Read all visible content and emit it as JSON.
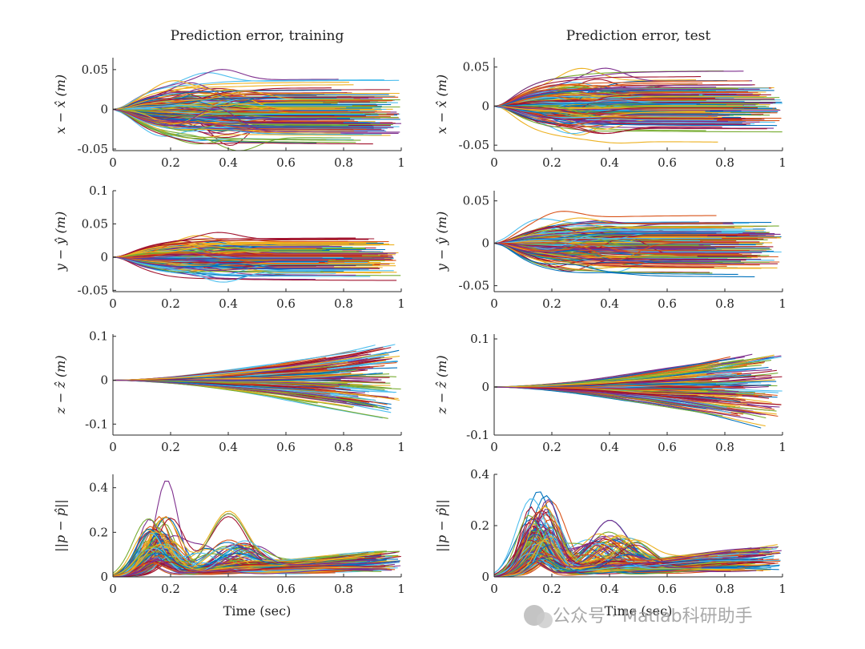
{
  "watermark": "公众号 · Matlab科研助手",
  "palette": [
    "#0072BD",
    "#D95319",
    "#EDB120",
    "#7E2F8E",
    "#77AC30",
    "#4DBEEE",
    "#A2142F"
  ],
  "chart_data": [
    {
      "id": "px-train",
      "type": "line",
      "title": "Prediction error, training",
      "ylabel": "x − x̂ (m)",
      "xlabel": "",
      "xlim": [
        0,
        1
      ],
      "ylim": [
        -0.052,
        0.065
      ],
      "xticks": [
        "0",
        "0.2",
        "0.4",
        "0.6",
        "0.8",
        "1"
      ],
      "yticks": [
        {
          "v": 0.05,
          "label": "0.05"
        },
        {
          "v": 0,
          "label": "0"
        },
        {
          "v": -0.05,
          "label": "-0.05"
        }
      ],
      "kind": "bell",
      "amp": 0.035,
      "plateau": 0.6,
      "n_series": 200,
      "note": "~200 trajectories, error starts at 0 at t=0, ends between 0.7 and 1.0 s"
    },
    {
      "id": "px-test",
      "type": "line",
      "title": "Prediction error, test",
      "ylabel": "x − x̂ (m)",
      "xlabel": "",
      "xlim": [
        0,
        1
      ],
      "ylim": [
        -0.057,
        0.062
      ],
      "xticks": [
        "0",
        "0.2",
        "0.4",
        "0.6",
        "0.8",
        "1"
      ],
      "yticks": [
        {
          "v": 0.05,
          "label": "0.05"
        },
        {
          "v": 0,
          "label": "0"
        },
        {
          "v": -0.05,
          "label": "-0.05"
        }
      ],
      "kind": "bell",
      "amp": 0.035,
      "plateau": 0.6,
      "n_series": 200
    },
    {
      "id": "py-train",
      "type": "line",
      "title": "",
      "ylabel": "y − ŷ (m)",
      "xlabel": "",
      "xlim": [
        0,
        1
      ],
      "ylim": [
        -0.052,
        0.1
      ],
      "xticks": [
        "0",
        "0.2",
        "0.4",
        "0.6",
        "0.8",
        "1"
      ],
      "yticks": [
        {
          "v": 0.1,
          "label": "0.1"
        },
        {
          "v": 0.05,
          "label": "0.05"
        },
        {
          "v": 0,
          "label": "0"
        },
        {
          "v": -0.05,
          "label": "-0.05"
        }
      ],
      "kind": "bell",
      "amp": 0.03,
      "plateau": 0.55,
      "n_series": 200
    },
    {
      "id": "py-test",
      "type": "line",
      "title": "",
      "ylabel": "y − ŷ (m)",
      "xlabel": "",
      "xlim": [
        0,
        1
      ],
      "ylim": [
        -0.057,
        0.062
      ],
      "xticks": [
        "0",
        "0.2",
        "0.4",
        "0.6",
        "0.8",
        "1"
      ],
      "yticks": [
        {
          "v": 0.05,
          "label": "0.05"
        },
        {
          "v": 0,
          "label": "0"
        },
        {
          "v": -0.05,
          "label": "-0.05"
        }
      ],
      "kind": "bell",
      "amp": 0.032,
      "plateau": 0.6,
      "n_series": 200
    },
    {
      "id": "pz-train",
      "type": "line",
      "title": "",
      "ylabel": "z − ẑ (m)",
      "xlabel": "",
      "xlim": [
        0,
        1
      ],
      "ylim": [
        -0.125,
        0.105
      ],
      "xticks": [
        "0",
        "0.2",
        "0.4",
        "0.6",
        "0.8",
        "1"
      ],
      "yticks": [
        {
          "v": 0.1,
          "label": "0.1"
        },
        {
          "v": 0,
          "label": "0"
        },
        {
          "v": -0.1,
          "label": "-0.1"
        }
      ],
      "kind": "fan",
      "amp": 0.1,
      "n_series": 200
    },
    {
      "id": "pz-test",
      "type": "line",
      "title": "",
      "ylabel": "z − ẑ (m)",
      "xlabel": "",
      "xlim": [
        0,
        1
      ],
      "ylim": [
        -0.1,
        0.11
      ],
      "xticks": [
        "0",
        "0.2",
        "0.4",
        "0.6",
        "0.8",
        "1"
      ],
      "yticks": [
        {
          "v": 0.1,
          "label": "0.1"
        },
        {
          "v": 0,
          "label": "0"
        },
        {
          "v": -0.1,
          "label": "-0.1"
        }
      ],
      "kind": "fan",
      "amp": 0.1,
      "n_series": 200
    },
    {
      "id": "pn-train",
      "type": "line",
      "title": "",
      "ylabel": "||p − p̂||",
      "xlabel": "Time (sec)",
      "xlim": [
        0,
        1
      ],
      "ylim": [
        0,
        0.46
      ],
      "xticks": [
        "0",
        "0.2",
        "0.4",
        "0.6",
        "0.8",
        "1"
      ],
      "yticks": [
        {
          "v": 0.4,
          "label": "0.4"
        },
        {
          "v": 0.2,
          "label": "0.2"
        },
        {
          "v": 0,
          "label": "0"
        }
      ],
      "kind": "norm",
      "peak": 0.45,
      "n_series": 200
    },
    {
      "id": "pn-test",
      "type": "line",
      "title": "",
      "ylabel": "||p − p̂||",
      "xlabel": "Time (sec)",
      "xlim": [
        0,
        1
      ],
      "ylim": [
        0,
        0.4
      ],
      "xticks": [
        "0",
        "0.2",
        "0.4",
        "0.6",
        "0.8",
        "1"
      ],
      "yticks": [
        {
          "v": 0.4,
          "label": "0.4"
        },
        {
          "v": 0.2,
          "label": "0.2"
        },
        {
          "v": 0,
          "label": "0"
        }
      ],
      "kind": "norm",
      "peak": 0.34,
      "n_series": 200
    }
  ]
}
